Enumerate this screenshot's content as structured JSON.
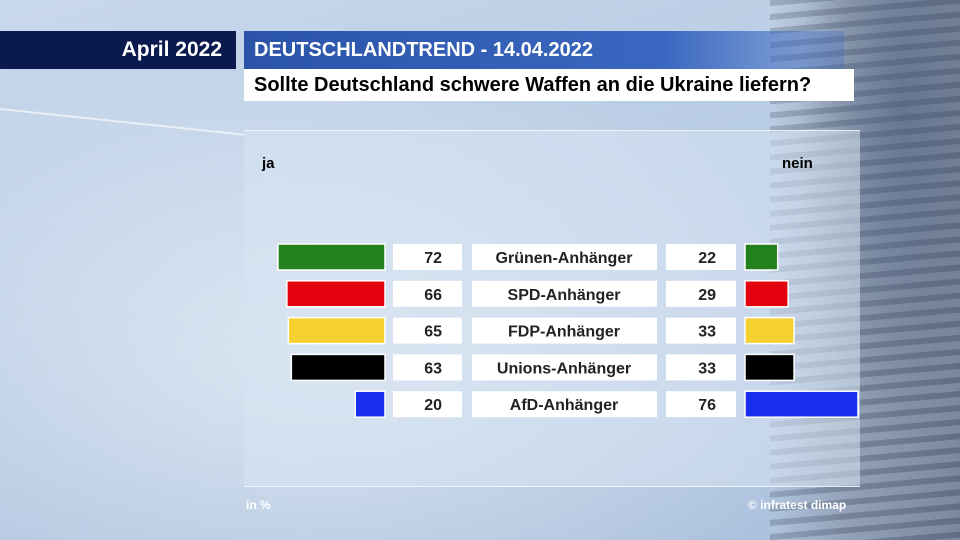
{
  "header": {
    "date": "April 2022",
    "title": "DEUTSCHLANDTREND - 14.04.2022",
    "question": "Sollte Deutschland schwere Waffen an die Ukraine liefern?"
  },
  "footer": {
    "unit": "in %",
    "source": "© infratest dimap"
  },
  "chart_data": {
    "type": "bar",
    "layout": "diverging-horizontal",
    "left_label": "ja",
    "right_label": "nein",
    "categories": [
      "Grünen-Anhänger",
      "SPD-Anhänger",
      "FDP-Anhänger",
      "Unions-Anhänger",
      "AfD-Anhänger"
    ],
    "colors": [
      "#22801f",
      "#e3000f",
      "#f6d02f",
      "#000000",
      "#1a2ef0"
    ],
    "series": [
      {
        "name": "ja",
        "values": [
          72,
          66,
          65,
          63,
          20
        ]
      },
      {
        "name": "nein",
        "values": [
          22,
          29,
          33,
          33,
          76
        ]
      }
    ],
    "xlim": [
      0,
      76
    ],
    "grid": false,
    "legend": "none"
  }
}
